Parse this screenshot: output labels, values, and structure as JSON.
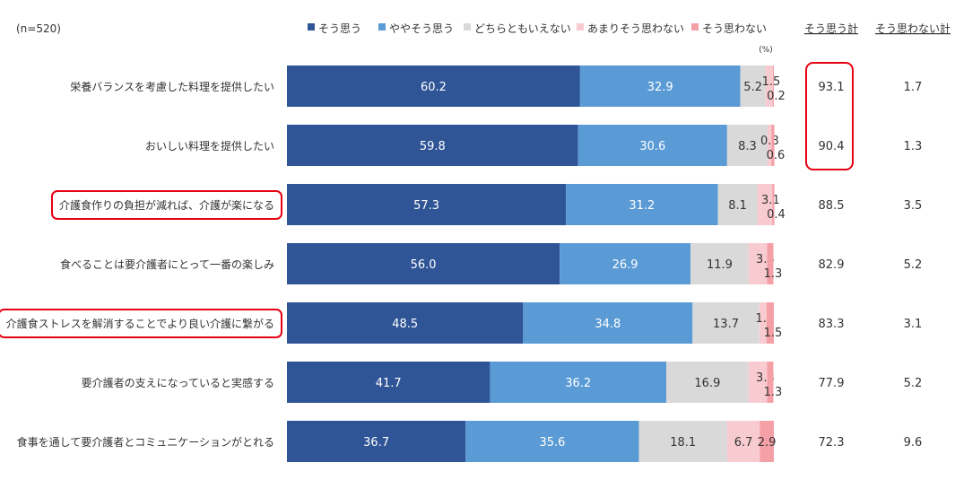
{
  "sample_size": "(n=520)",
  "unit_label": "(%)",
  "summary_headers": {
    "agree_total": "そう思う計",
    "disagree_total": "そう思わない計"
  },
  "chart_data": {
    "type": "bar",
    "orientation": "horizontal",
    "stacked": true,
    "scale": "percent",
    "xlim": [
      0,
      100
    ],
    "categories": [
      "栄養バランスを考慮した料理を提供したい",
      "おいしい料理を提供したい",
      "介護食作りの負担が減れば、介護が楽になる",
      "食べることは要介護者にとって一番の楽しみ",
      "介護食ストレスを解消することでより良い介護に繋がる",
      "要介護者の支えになっていると実感する",
      "食事を通して要介護者とコミュニケーションがとれる"
    ],
    "series": [
      {
        "name": "そう思う",
        "color": "#2f5597",
        "values": [
          60.2,
          59.8,
          57.3,
          56.0,
          48.5,
          41.7,
          36.7
        ]
      },
      {
        "name": "ややそう思う",
        "color": "#5b9bd5",
        "values": [
          32.9,
          30.6,
          31.2,
          26.9,
          34.8,
          36.2,
          35.6
        ]
      },
      {
        "name": "どちらともいえない",
        "color": "#d9d9d9",
        "values": [
          5.2,
          8.3,
          8.1,
          11.9,
          13.7,
          16.9,
          18.1
        ]
      },
      {
        "name": "あまりそう思わない",
        "color": "#f8cbd0",
        "values": [
          1.5,
          0.8,
          3.1,
          3.8,
          1.5,
          3.8,
          6.7
        ]
      },
      {
        "name": "そう思わない",
        "color": "#f4a0a6",
        "values": [
          0.2,
          0.6,
          0.4,
          1.3,
          1.5,
          1.3,
          2.9
        ]
      }
    ],
    "label_text": [
      [
        "60.2",
        "32.9",
        "5.2",
        "1.5",
        "0.2"
      ],
      [
        "59.8",
        "30.6",
        "8.3",
        "0.8",
        "0.6"
      ],
      [
        "57.3",
        "31.2",
        "8.1",
        "3.1",
        "0.4"
      ],
      [
        "56.0",
        "26.9",
        "11.9",
        "3.8",
        "1.3"
      ],
      [
        "48.5",
        "34.8",
        "13.7",
        "1.5",
        "1.5"
      ],
      [
        "41.7",
        "36.2",
        "16.9",
        "3.8",
        "1.3"
      ],
      [
        "36.7",
        "35.6",
        "18.1",
        "6.7",
        "2.9"
      ]
    ],
    "agree_total": [
      "93.1",
      "90.4",
      "88.5",
      "82.9",
      "83.3",
      "77.9",
      "72.3"
    ],
    "disagree_total": [
      "1.7",
      "1.3",
      "3.5",
      "5.2",
      "3.1",
      "5.2",
      "9.6"
    ],
    "highlighted_categories": [
      2,
      4
    ],
    "highlighted_agree_totals": [
      0,
      1
    ],
    "highlight_color": "#e60012",
    "legend_position": "top"
  }
}
